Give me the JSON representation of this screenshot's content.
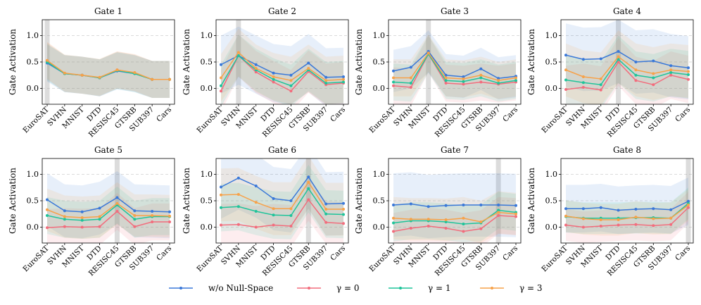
{
  "figure": {
    "ylabel": "Gate Activation",
    "legend": {
      "placement": "bottom-center",
      "entries": [
        {
          "name": "w/o Null-Space",
          "color": "#3a78d8"
        },
        {
          "name": "γ = 0",
          "color": "#f26d7d"
        },
        {
          "name": "γ = 1",
          "color": "#1fc49a"
        },
        {
          "name": "γ = 3",
          "color": "#f7a24a"
        }
      ]
    }
  },
  "chart_data": [
    {
      "type": "line",
      "title": "Gate 1",
      "categories": [
        "EuroSAT",
        "SVHN",
        "MNIST",
        "DTD",
        "RESISC45",
        "GTSRB",
        "SUB397",
        "Cars"
      ],
      "highlight": "EuroSAT",
      "ylim": [
        -0.3,
        1.3
      ],
      "yticks": [
        0.0,
        0.5,
        1.0
      ],
      "series": [
        {
          "name": "w/o Null-Space",
          "values": [
            0.48,
            0.28,
            0.25,
            0.2,
            0.33,
            0.28,
            0.17,
            0.17
          ],
          "band": 0.35
        },
        {
          "name": "γ = 0",
          "values": [
            0.52,
            0.28,
            0.25,
            0.2,
            0.35,
            0.29,
            0.17,
            0.17
          ],
          "band": 0.35
        },
        {
          "name": "γ = 1",
          "values": [
            0.5,
            0.28,
            0.25,
            0.2,
            0.34,
            0.28,
            0.17,
            0.17
          ],
          "band": 0.35
        },
        {
          "name": "γ = 3",
          "values": [
            0.53,
            0.29,
            0.25,
            0.21,
            0.35,
            0.3,
            0.17,
            0.17
          ],
          "band": 0.35
        }
      ]
    },
    {
      "type": "line",
      "title": "Gate 2",
      "categories": [
        "EuroSAT",
        "SVHN",
        "MNIST",
        "DTD",
        "RESISC45",
        "GTSRB",
        "SUB397",
        "Cars"
      ],
      "highlight": "SVHN",
      "ylim": [
        -0.3,
        1.3
      ],
      "yticks": [
        0.0,
        0.5,
        1.0
      ],
      "series": [
        {
          "name": "w/o Null-Space",
          "values": [
            0.45,
            0.62,
            0.45,
            0.29,
            0.25,
            0.48,
            0.21,
            0.22
          ],
          "band": 0.55
        },
        {
          "name": "γ = 0",
          "values": [
            -0.05,
            0.62,
            0.31,
            0.12,
            -0.05,
            0.32,
            0.07,
            0.1
          ],
          "band": 0.4
        },
        {
          "name": "γ = 1",
          "values": [
            0.05,
            0.62,
            0.35,
            0.17,
            0.05,
            0.35,
            0.1,
            0.12
          ],
          "band": 0.4
        },
        {
          "name": "γ = 3",
          "values": [
            0.2,
            0.68,
            0.38,
            0.22,
            0.15,
            0.38,
            0.15,
            0.17
          ],
          "band": 0.45
        }
      ]
    },
    {
      "type": "line",
      "title": "Gate 3",
      "categories": [
        "EuroSAT",
        "SVHN",
        "MNIST",
        "DTD",
        "RESISC45",
        "GTSRB",
        "SUB397",
        "Cars"
      ],
      "highlight": "MNIST",
      "ylim": [
        -0.3,
        1.3
      ],
      "yticks": [
        0.0,
        0.5,
        1.0
      ],
      "series": [
        {
          "name": "w/o Null-Space",
          "values": [
            0.33,
            0.4,
            0.7,
            0.25,
            0.22,
            0.37,
            0.19,
            0.23
          ],
          "band": 0.4
        },
        {
          "name": "γ = 0",
          "values": [
            0.05,
            0.02,
            0.65,
            0.1,
            0.08,
            0.12,
            0.08,
            0.12
          ],
          "band": 0.35
        },
        {
          "name": "γ = 1",
          "values": [
            0.12,
            0.1,
            0.65,
            0.15,
            0.13,
            0.2,
            0.1,
            0.15
          ],
          "band": 0.35
        },
        {
          "name": "γ = 3",
          "values": [
            0.2,
            0.2,
            0.67,
            0.2,
            0.18,
            0.25,
            0.15,
            0.2
          ],
          "band": 0.35
        }
      ]
    },
    {
      "type": "line",
      "title": "Gate 4",
      "categories": [
        "EuroSAT",
        "SVHN",
        "MNIST",
        "DTD",
        "RESISC45",
        "GTSRB",
        "SUB397",
        "Cars"
      ],
      "highlight": "DTD",
      "ylim": [
        -0.3,
        1.3
      ],
      "yticks": [
        0.0,
        0.5,
        1.0
      ],
      "series": [
        {
          "name": "w/o Null-Space",
          "values": [
            0.63,
            0.55,
            0.56,
            0.7,
            0.5,
            0.52,
            0.43,
            0.39
          ],
          "band": 0.6
        },
        {
          "name": "γ = 0",
          "values": [
            -0.02,
            0.02,
            -0.03,
            0.5,
            0.15,
            0.07,
            0.25,
            0.17
          ],
          "band": 0.45
        },
        {
          "name": "γ = 1",
          "values": [
            0.16,
            0.11,
            0.07,
            0.55,
            0.25,
            0.2,
            0.3,
            0.26
          ],
          "band": 0.45
        },
        {
          "name": "γ = 3",
          "values": [
            0.35,
            0.22,
            0.18,
            0.6,
            0.35,
            0.28,
            0.35,
            0.32
          ],
          "band": 0.5
        }
      ]
    },
    {
      "type": "line",
      "title": "Gate 5",
      "categories": [
        "EuroSAT",
        "SVHN",
        "MNIST",
        "DTD",
        "RESISC45",
        "GTSRB",
        "SUB397",
        "Cars"
      ],
      "highlight": "RESISC45",
      "ylim": [
        -0.3,
        1.3
      ],
      "yticks": [
        0.0,
        0.5,
        1.0
      ],
      "series": [
        {
          "name": "w/o Null-Space",
          "values": [
            0.52,
            0.31,
            0.29,
            0.36,
            0.56,
            0.31,
            0.3,
            0.29
          ],
          "band": 0.5
        },
        {
          "name": "γ = 0",
          "values": [
            -0.01,
            0.01,
            0.0,
            0.01,
            0.3,
            0.01,
            0.1,
            0.1
          ],
          "band": 0.35
        },
        {
          "name": "γ = 1",
          "values": [
            0.22,
            0.15,
            0.13,
            0.15,
            0.42,
            0.15,
            0.2,
            0.2
          ],
          "band": 0.35
        },
        {
          "name": "γ = 3",
          "values": [
            0.33,
            0.2,
            0.18,
            0.2,
            0.45,
            0.22,
            0.22,
            0.21
          ],
          "band": 0.4
        }
      ]
    },
    {
      "type": "line",
      "title": "Gate 6",
      "categories": [
        "EuroSAT",
        "SVHN",
        "MNIST",
        "DTD",
        "RESISC45",
        "GTSRB",
        "SUB397",
        "Cars"
      ],
      "highlight": "GTSRB",
      "ylim": [
        -0.3,
        1.3
      ],
      "yticks": [
        0.0,
        0.5,
        1.0
      ],
      "series": [
        {
          "name": "w/o Null-Space",
          "values": [
            0.76,
            0.93,
            0.78,
            0.54,
            0.5,
            0.95,
            0.44,
            0.45
          ],
          "band": 0.6
        },
        {
          "name": "γ = 0",
          "values": [
            0.04,
            0.05,
            0.0,
            0.04,
            0.02,
            0.52,
            0.09,
            0.07
          ],
          "band": 0.4
        },
        {
          "name": "γ = 1",
          "values": [
            0.37,
            0.39,
            0.3,
            0.23,
            0.22,
            0.73,
            0.25,
            0.24
          ],
          "band": 0.45
        },
        {
          "name": "γ = 3",
          "values": [
            0.61,
            0.62,
            0.47,
            0.35,
            0.35,
            0.85,
            0.34,
            0.34
          ],
          "band": 0.5
        }
      ]
    },
    {
      "type": "line",
      "title": "Gate 7",
      "categories": [
        "EuroSAT",
        "SVHN",
        "MNIST",
        "DTD",
        "RESISC45",
        "GTSRB",
        "SUB397",
        "Cars"
      ],
      "highlight": "SUB397",
      "ylim": [
        -0.3,
        1.3
      ],
      "yticks": [
        0.0,
        0.5,
        1.0
      ],
      "series": [
        {
          "name": "w/o Null-Space",
          "values": [
            0.42,
            0.44,
            0.39,
            0.41,
            0.42,
            0.42,
            0.42,
            0.41
          ],
          "band": 0.6
        },
        {
          "name": "γ = 0",
          "values": [
            -0.08,
            -0.02,
            0.02,
            -0.02,
            -0.08,
            -0.03,
            0.22,
            0.2
          ],
          "band": 0.35
        },
        {
          "name": "γ = 1",
          "values": [
            0.08,
            0.12,
            0.12,
            0.1,
            0.06,
            0.08,
            0.32,
            0.28
          ],
          "band": 0.35
        },
        {
          "name": "γ = 3",
          "values": [
            0.17,
            0.15,
            0.15,
            0.14,
            0.17,
            0.1,
            0.28,
            0.25
          ],
          "band": 0.4
        }
      ]
    },
    {
      "type": "line",
      "title": "Gate 8",
      "categories": [
        "EuroSAT",
        "SVHN",
        "MNIST",
        "DTD",
        "RESISC45",
        "GTSRB",
        "SUB397",
        "Cars"
      ],
      "highlight": "Cars",
      "ylim": [
        -0.3,
        1.3
      ],
      "yticks": [
        0.0,
        0.5,
        1.0
      ],
      "series": [
        {
          "name": "w/o Null-Space",
          "values": [
            0.35,
            0.35,
            0.37,
            0.32,
            0.34,
            0.35,
            0.33,
            0.49
          ],
          "band": 0.45
        },
        {
          "name": "γ = 0",
          "values": [
            0.04,
            0.0,
            0.02,
            0.04,
            0.05,
            0.03,
            0.05,
            0.37
          ],
          "band": 0.3
        },
        {
          "name": "γ = 1",
          "values": [
            0.2,
            0.17,
            0.17,
            0.17,
            0.18,
            0.18,
            0.17,
            0.45
          ],
          "band": 0.3
        },
        {
          "name": "γ = 3",
          "values": [
            0.21,
            0.16,
            0.14,
            0.14,
            0.19,
            0.16,
            0.17,
            0.42
          ],
          "band": 0.3
        }
      ]
    }
  ]
}
